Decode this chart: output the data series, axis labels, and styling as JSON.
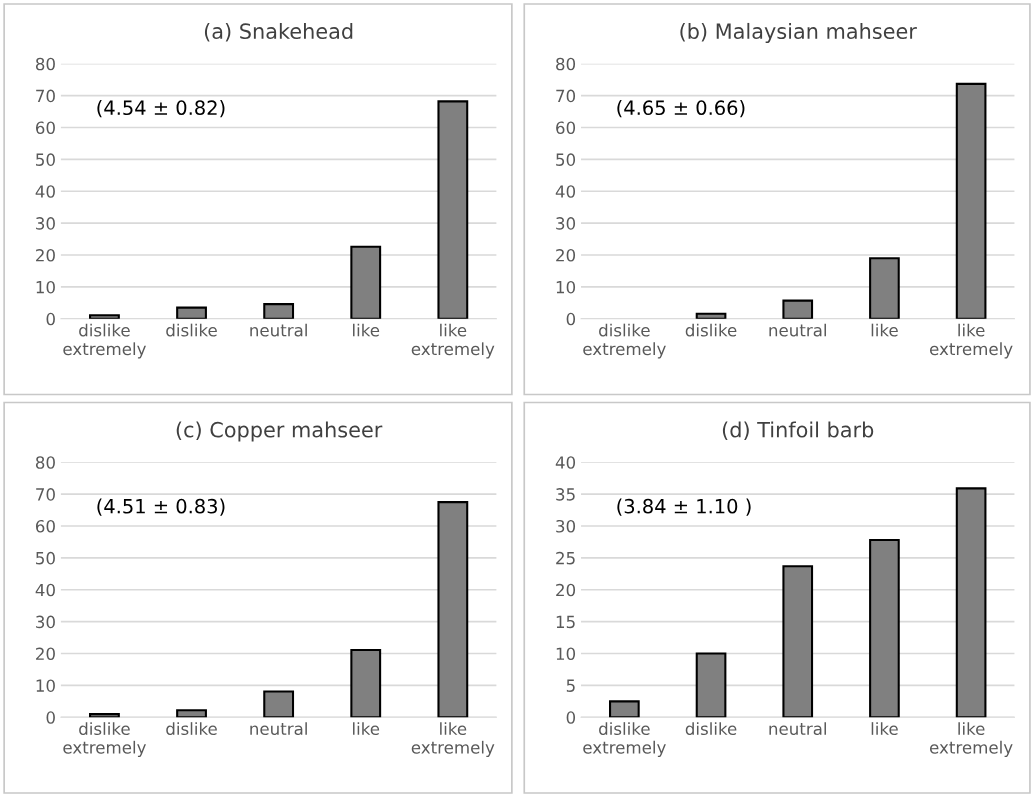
{
  "chart_data": [
    {
      "type": "bar",
      "title": "(a) Snakehead",
      "categories": [
        "dislike\nextremely",
        "dislike",
        "neutral",
        "like",
        "like\nextremely"
      ],
      "values": [
        1.1,
        3.5,
        4.6,
        22.6,
        68.2
      ],
      "color": "#808080",
      "ylim": [
        0,
        80
      ],
      "yticks": [
        0,
        10,
        20,
        30,
        40,
        50,
        60,
        70,
        80
      ],
      "grid": "y",
      "annotations": [
        "(4.54 ± 0.82)"
      ]
    },
    {
      "type": "bar",
      "title": "(b) Malaysian mahseer",
      "categories": [
        "dislike\nextremely",
        "dislike",
        "neutral",
        "like",
        "like\nextremely"
      ],
      "values": [
        0,
        1.6,
        5.7,
        19.0,
        73.7
      ],
      "color": "#808080",
      "ylim": [
        0,
        80
      ],
      "yticks": [
        0,
        10,
        20,
        30,
        40,
        50,
        60,
        70,
        80
      ],
      "grid": "y",
      "annotations": [
        "(4.65 ± 0.66)"
      ]
    },
    {
      "type": "bar",
      "title": "(c) Copper mahseer",
      "categories": [
        "dislike\nextremely",
        "dislike",
        "neutral",
        "like",
        "like\nextremely"
      ],
      "values": [
        1.0,
        2.2,
        8.1,
        21.1,
        67.5
      ],
      "color": "#808080",
      "ylim": [
        0,
        80
      ],
      "yticks": [
        0,
        10,
        20,
        30,
        40,
        50,
        60,
        70,
        80
      ],
      "grid": "y",
      "annotations": [
        "(4.51 ± 0.83)"
      ]
    },
    {
      "type": "bar",
      "title": "(d) Tinfoil barb",
      "categories": [
        "dislike\nextremely",
        "dislike",
        "neutral",
        "like",
        "like\nextremely"
      ],
      "values": [
        2.5,
        10.0,
        23.7,
        27.8,
        35.9
      ],
      "color": "#808080",
      "ylim": [
        0,
        40
      ],
      "yticks": [
        0,
        5,
        10,
        15,
        20,
        25,
        30,
        35,
        40
      ],
      "grid": "y",
      "annotations": [
        "(3.84 ± 1.10 )"
      ]
    }
  ]
}
